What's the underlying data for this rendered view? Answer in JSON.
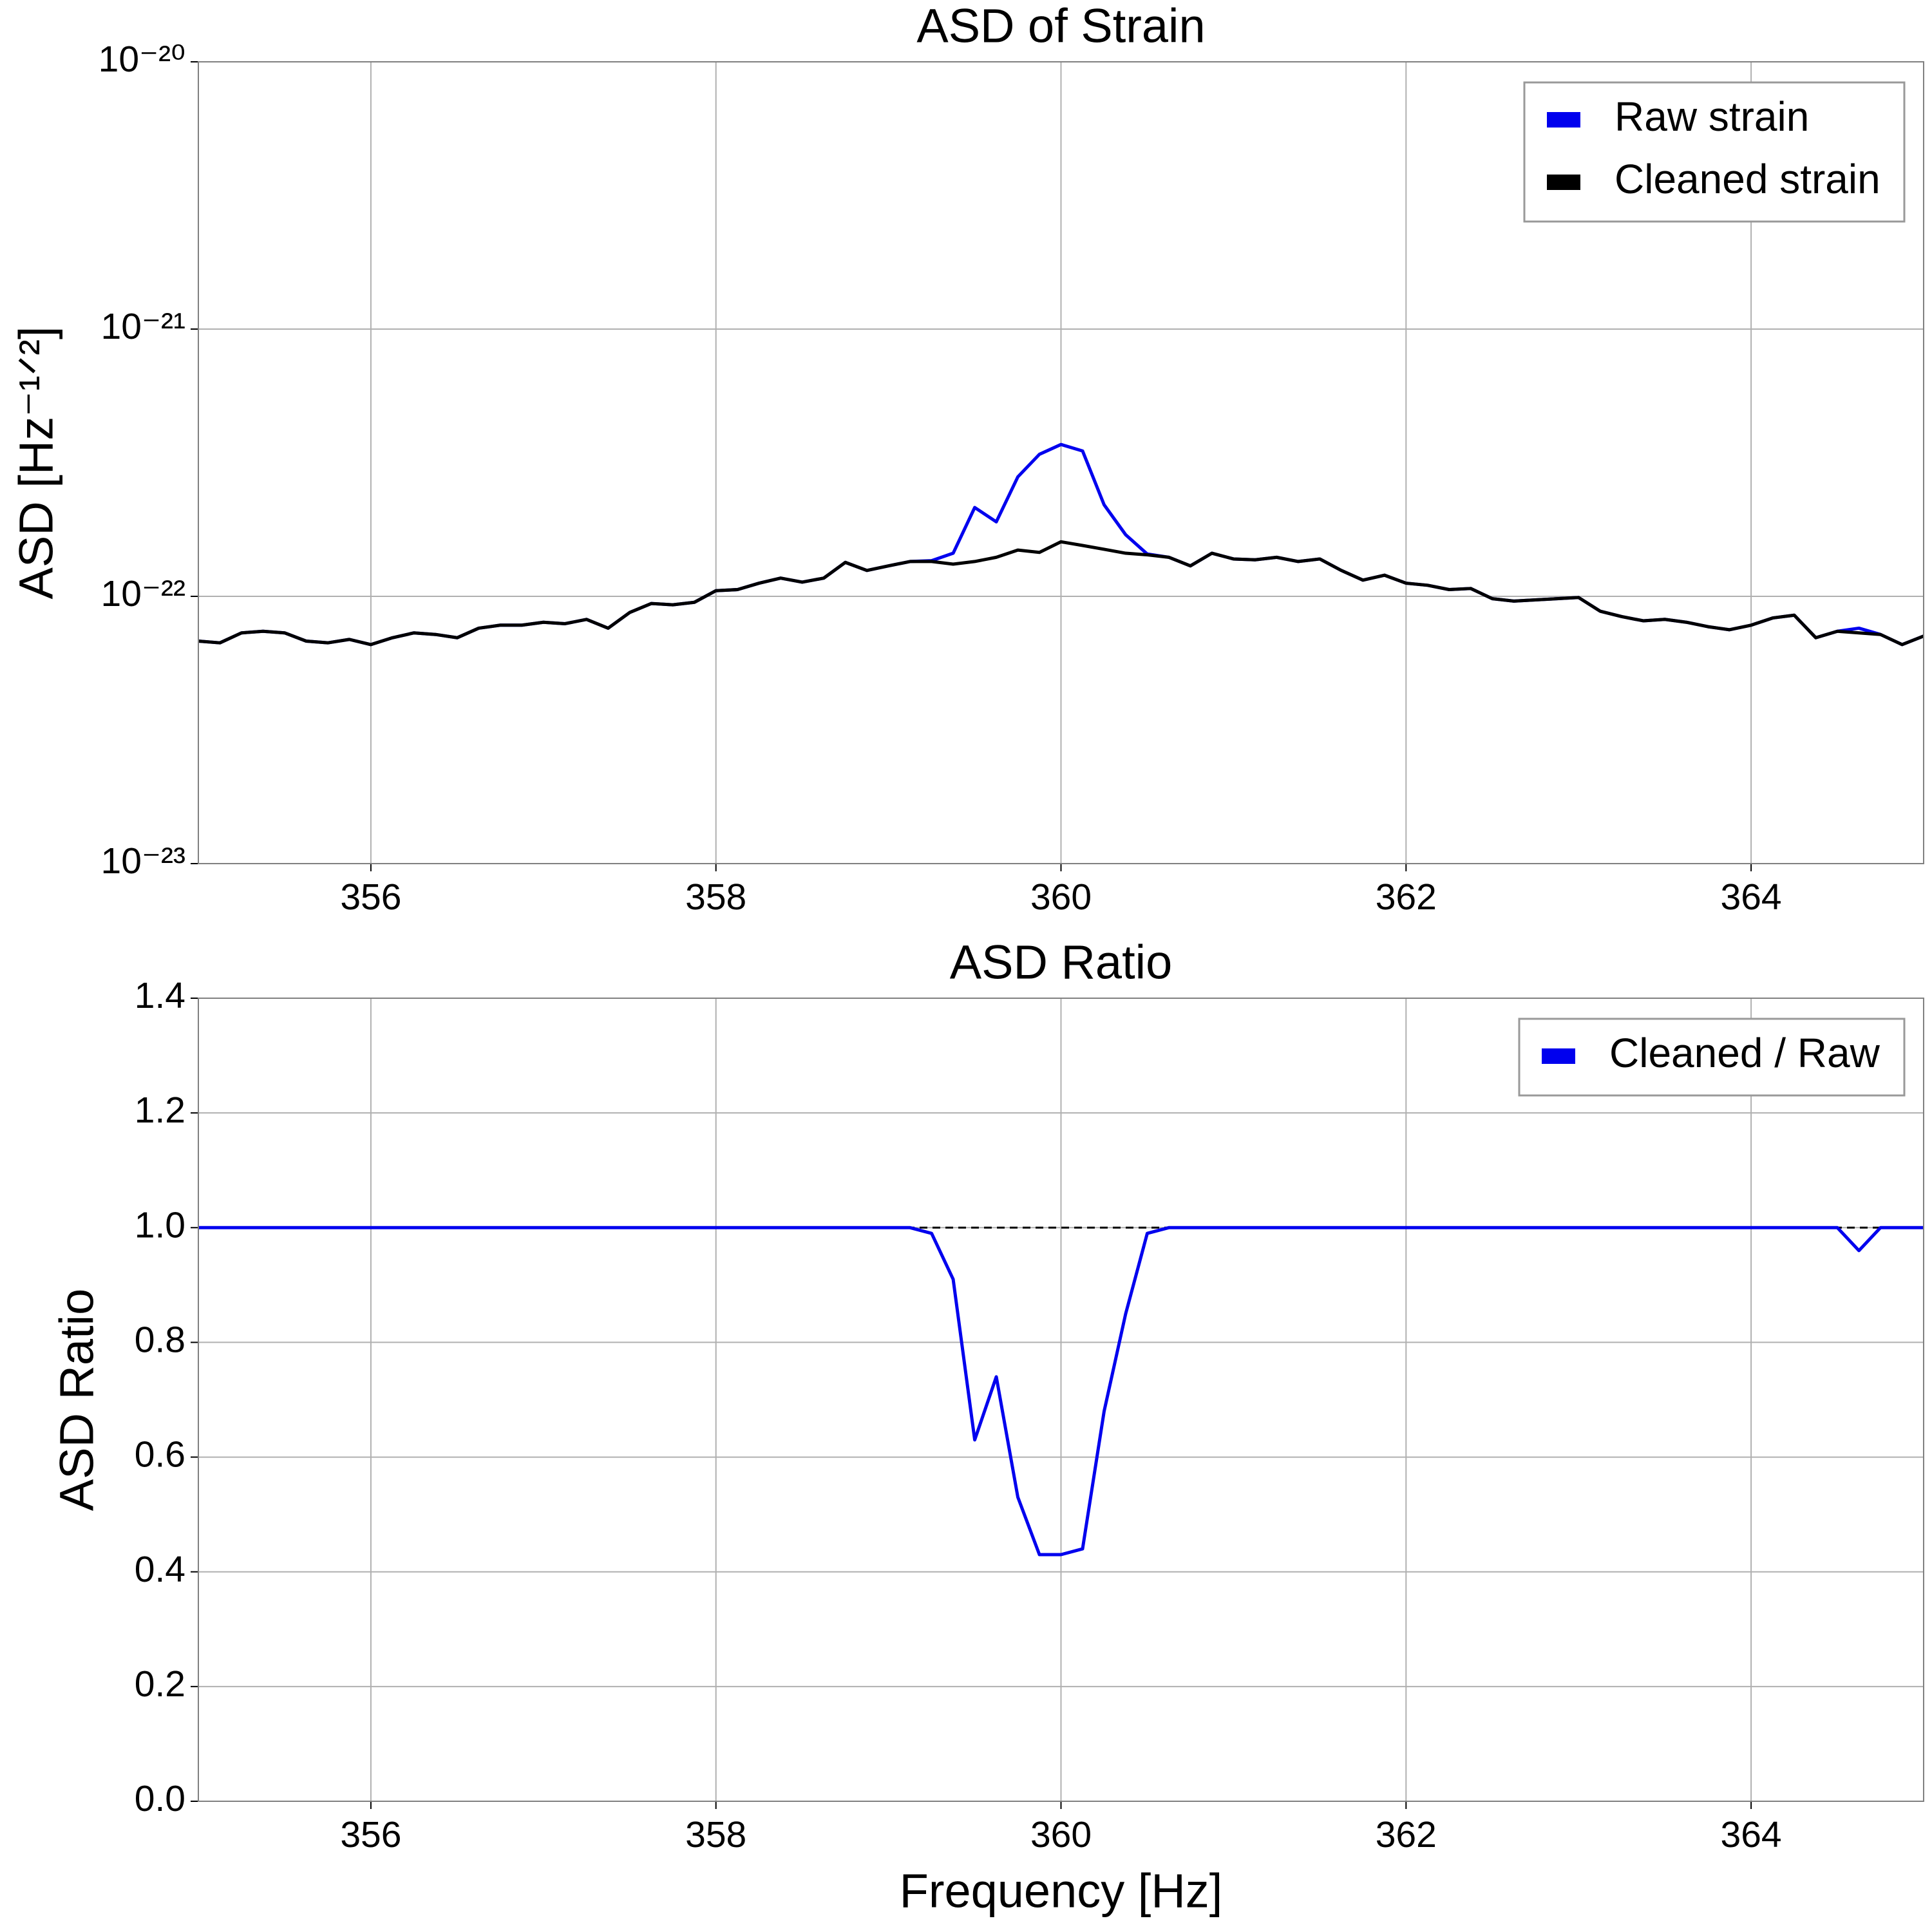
{
  "chart_data": [
    {
      "type": "line",
      "title": "ASD of Strain",
      "ylabel": "ASD [Hz⁻¹ᐟ²]",
      "yscale": "log",
      "grid": true,
      "legend": "upper right",
      "xlim": [
        355,
        365
      ],
      "xticks": [
        356,
        358,
        360,
        362,
        364
      ],
      "ylim": [
        1e-23,
        1e-20
      ],
      "yticks": [
        {
          "value": 1e-23,
          "label": "10⁻²³"
        },
        {
          "value": 1e-22,
          "label": "10⁻²²"
        },
        {
          "value": 1e-21,
          "label": "10⁻²¹"
        },
        {
          "value": 1e-20,
          "label": "10⁻²⁰"
        }
      ],
      "x": [
        355,
        355.125,
        355.25,
        355.375,
        355.5,
        355.625,
        355.75,
        355.875,
        356,
        356.125,
        356.25,
        356.375,
        356.5,
        356.625,
        356.75,
        356.875,
        357,
        357.125,
        357.25,
        357.375,
        357.5,
        357.625,
        357.75,
        357.875,
        358,
        358.125,
        358.25,
        358.375,
        358.5,
        358.625,
        358.75,
        358.875,
        359,
        359.125,
        359.25,
        359.375,
        359.5,
        359.625,
        359.75,
        359.875,
        360,
        360.125,
        360.25,
        360.375,
        360.5,
        360.625,
        360.75,
        360.875,
        361,
        361.125,
        361.25,
        361.375,
        361.5,
        361.625,
        361.75,
        361.875,
        362,
        362.125,
        362.25,
        362.375,
        362.5,
        362.625,
        362.75,
        362.875,
        363,
        363.125,
        363.25,
        363.375,
        363.5,
        363.625,
        363.75,
        363.875,
        364,
        364.125,
        364.25,
        364.375,
        364.5,
        364.625,
        364.75,
        364.875,
        365
      ],
      "series": [
        {
          "name": "Raw strain",
          "color": "#0000ee",
          "values": [
            6.8e-23,
            6.7e-23,
            7.3e-23,
            7.4e-23,
            7.3e-23,
            6.8e-23,
            6.7e-23,
            6.9e-23,
            6.6e-23,
            7e-23,
            7.3e-23,
            7.2e-23,
            7e-23,
            7.6e-23,
            7.8e-23,
            7.8e-23,
            8e-23,
            7.9e-23,
            8.2e-23,
            7.6e-23,
            8.7e-23,
            9.4e-23,
            9.3e-23,
            9.5e-23,
            1.05e-22,
            1.06e-22,
            1.12e-22,
            1.17e-22,
            1.13e-22,
            1.17e-22,
            1.34e-22,
            1.25e-22,
            1.3e-22,
            1.35e-22,
            1.36e-22,
            1.45e-22,
            2.15e-22,
            1.9e-22,
            2.8e-22,
            3.4e-22,
            3.7e-22,
            3.5e-22,
            2.2e-22,
            1.7e-22,
            1.44e-22,
            1.4e-22,
            1.3e-22,
            1.45e-22,
            1.38e-22,
            1.37e-22,
            1.4e-22,
            1.35e-22,
            1.38e-22,
            1.25e-22,
            1.15e-22,
            1.2e-22,
            1.12e-22,
            1.1e-22,
            1.06e-22,
            1.07e-22,
            9.8e-23,
            9.6e-23,
            9.7e-23,
            9.8e-23,
            9.9e-23,
            8.8e-23,
            8.4e-23,
            8.1e-23,
            8.2e-23,
            8e-23,
            7.7e-23,
            7.5e-23,
            7.8e-23,
            8.3e-23,
            8.5e-23,
            7e-23,
            7.4e-23,
            7.6e-23,
            7.2e-23,
            6.6e-23,
            7.1e-23
          ]
        },
        {
          "name": "Cleaned strain",
          "color": "#000000",
          "values": [
            6.8e-23,
            6.7e-23,
            7.3e-23,
            7.4e-23,
            7.3e-23,
            6.8e-23,
            6.7e-23,
            6.9e-23,
            6.6e-23,
            7e-23,
            7.3e-23,
            7.2e-23,
            7e-23,
            7.6e-23,
            7.8e-23,
            7.8e-23,
            8e-23,
            7.9e-23,
            8.2e-23,
            7.6e-23,
            8.7e-23,
            9.4e-23,
            9.3e-23,
            9.5e-23,
            1.05e-22,
            1.06e-22,
            1.12e-22,
            1.17e-22,
            1.13e-22,
            1.17e-22,
            1.34e-22,
            1.25e-22,
            1.3e-22,
            1.35e-22,
            1.35e-22,
            1.32e-22,
            1.35e-22,
            1.4e-22,
            1.49e-22,
            1.46e-22,
            1.6e-22,
            1.55e-22,
            1.5e-22,
            1.45e-22,
            1.43e-22,
            1.4e-22,
            1.3e-22,
            1.45e-22,
            1.38e-22,
            1.37e-22,
            1.4e-22,
            1.35e-22,
            1.38e-22,
            1.25e-22,
            1.15e-22,
            1.2e-22,
            1.12e-22,
            1.1e-22,
            1.06e-22,
            1.07e-22,
            9.8e-23,
            9.6e-23,
            9.7e-23,
            9.8e-23,
            9.9e-23,
            8.8e-23,
            8.4e-23,
            8.1e-23,
            8.2e-23,
            8e-23,
            7.7e-23,
            7.5e-23,
            7.8e-23,
            8.3e-23,
            8.5e-23,
            7e-23,
            7.4e-23,
            7.3e-23,
            7.2e-23,
            6.6e-23,
            7.1e-23
          ]
        }
      ]
    },
    {
      "type": "line",
      "title": "ASD Ratio",
      "xlabel": "Frequency [Hz]",
      "ylabel": "ASD Ratio",
      "yscale": "linear",
      "grid": true,
      "legend": "upper right",
      "xlim": [
        355,
        365
      ],
      "xticks": [
        356,
        358,
        360,
        362,
        364
      ],
      "ylim": [
        0,
        1.4
      ],
      "yticks": [
        {
          "value": 0,
          "label": "0.0"
        },
        0.2,
        0.4,
        0.6,
        0.8,
        {
          "value": 1,
          "label": "1.0"
        },
        1.2,
        1.4
      ],
      "hline": 1,
      "x": [
        355,
        355.125,
        355.25,
        355.375,
        355.5,
        355.625,
        355.75,
        355.875,
        356,
        356.125,
        356.25,
        356.375,
        356.5,
        356.625,
        356.75,
        356.875,
        357,
        357.125,
        357.25,
        357.375,
        357.5,
        357.625,
        357.75,
        357.875,
        358,
        358.125,
        358.25,
        358.375,
        358.5,
        358.625,
        358.75,
        358.875,
        359,
        359.125,
        359.25,
        359.375,
        359.5,
        359.625,
        359.75,
        359.875,
        360,
        360.125,
        360.25,
        360.375,
        360.5,
        360.625,
        360.75,
        360.875,
        361,
        361.125,
        361.25,
        361.375,
        361.5,
        361.625,
        361.75,
        361.875,
        362,
        362.125,
        362.25,
        362.375,
        362.5,
        362.625,
        362.75,
        362.875,
        363,
        363.125,
        363.25,
        363.375,
        363.5,
        363.625,
        363.75,
        363.875,
        364,
        364.125,
        364.25,
        364.375,
        364.5,
        364.625,
        364.75,
        364.875,
        365
      ],
      "series": [
        {
          "name": "Cleaned / Raw",
          "color": "#0000ee",
          "values": [
            1,
            1,
            1,
            1,
            1,
            1,
            1,
            1,
            1,
            1,
            1,
            1,
            1,
            1,
            1,
            1,
            1,
            1,
            1,
            1,
            1,
            1,
            1,
            1,
            1,
            1,
            1,
            1,
            1,
            1,
            1,
            1,
            1,
            1,
            0.99,
            0.91,
            0.63,
            0.74,
            0.53,
            0.43,
            0.43,
            0.44,
            0.68,
            0.85,
            0.99,
            1,
            1,
            1,
            1,
            1,
            1,
            1,
            1,
            1,
            1,
            1,
            1,
            1,
            1,
            1,
            1,
            1,
            1,
            1,
            1,
            1,
            1,
            1,
            1,
            1,
            1,
            1,
            1,
            1,
            1,
            1,
            1,
            0.96,
            1,
            1,
            1
          ]
        }
      ]
    }
  ]
}
